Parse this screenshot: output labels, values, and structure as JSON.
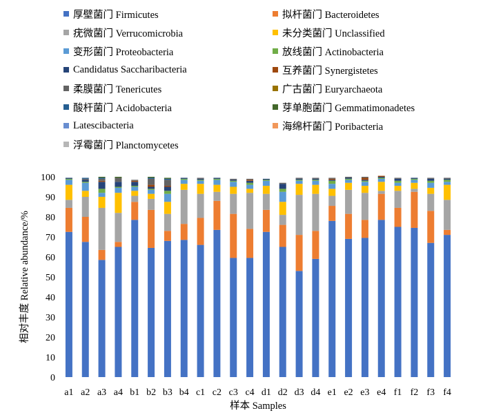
{
  "chart_data": {
    "type": "bar",
    "stacked": true,
    "xlabel": "样本 Samples",
    "ylabel": "相对丰度 Relative abundance/%",
    "ylim": [
      0,
      100
    ],
    "yticks": [
      0,
      10,
      20,
      30,
      40,
      50,
      60,
      70,
      80,
      90,
      100
    ],
    "categories": [
      "a1",
      "a2",
      "a3",
      "a4",
      "b1",
      "b2",
      "b3",
      "b4",
      "c1",
      "c2",
      "c3",
      "c4",
      "d1",
      "d2",
      "d3",
      "d4",
      "e1",
      "e2",
      "e3",
      "e4",
      "f1",
      "f2",
      "f3",
      "f4"
    ],
    "legend_position": "top",
    "series": [
      {
        "name": "厚壁菌门 Firmicutes",
        "color": "#4472c4",
        "values": [
          72.5,
          67.5,
          58.5,
          65,
          78.5,
          64.5,
          68,
          68.5,
          66,
          73.5,
          59.5,
          59.5,
          72.5,
          65,
          53,
          59,
          78,
          69,
          69.5,
          78.5,
          75,
          74.5,
          67,
          71
        ]
      },
      {
        "name": "拟杆菌门 Bacteroidetes",
        "color": "#ed7d31",
        "values": [
          12,
          12.5,
          5,
          2.5,
          9,
          19,
          5,
          8,
          13.5,
          14.5,
          22,
          14.5,
          11,
          11,
          18,
          14,
          7.5,
          12.5,
          9,
          13,
          9.5,
          18,
          16,
          2.5
        ]
      },
      {
        "name": "疣微菌门 Verrucomicrobia",
        "color": "#a5a5a5",
        "values": [
          4,
          10,
          21,
          14.5,
          3,
          5.5,
          8.5,
          17,
          12,
          4.5,
          10,
          18,
          8,
          5,
          20,
          18.5,
          5,
          12,
          13.5,
          1.5,
          8.5,
          1.5,
          8.5,
          15
        ]
      },
      {
        "name": "未分类菌门 Unclassified",
        "color": "#ffc000",
        "values": [
          7.5,
          3,
          5.5,
          10,
          2.5,
          2.5,
          6,
          3,
          5,
          3.5,
          3.5,
          2,
          4,
          6.5,
          5.5,
          4.5,
          3.5,
          3.5,
          3.5,
          4.5,
          2.5,
          3,
          3,
          7.5
        ]
      },
      {
        "name": "变形菌门 Proteobacteria",
        "color": "#5b9bd5",
        "values": [
          2.5,
          4,
          2,
          2.5,
          2,
          2,
          4,
          2,
          1.5,
          2.5,
          2.5,
          2,
          2.5,
          5,
          1.5,
          2,
          2.5,
          1.5,
          2,
          1.5,
          1.5,
          1.5,
          2.5,
          1.5
        ]
      },
      {
        "name": "放线菌门 Actinobacteria",
        "color": "#70ad47",
        "values": [
          0.5,
          0.5,
          2,
          0.5,
          0.5,
          0.5,
          1.5,
          0.5,
          0.5,
          0.5,
          0.5,
          1,
          0.5,
          1.5,
          0.5,
          0.5,
          1.5,
          0.5,
          0.5,
          0.5,
          1,
          0.5,
          1,
          1
        ]
      },
      {
        "name": "Candidatus Saccharibacteria",
        "color": "#264478",
        "values": [
          0.5,
          1,
          3.5,
          2.5,
          2,
          1,
          2,
          0.5,
          0.5,
          0.5,
          0.5,
          1,
          0.5,
          2.5,
          0.5,
          0.5,
          0.5,
          0.5,
          0.5,
          0.5,
          1,
          0.5,
          1,
          0.5
        ]
      },
      {
        "name": "互养菌门 Synergistetes",
        "color": "#9e480e",
        "values": [
          0,
          0,
          0.5,
          0,
          0.5,
          1,
          0.5,
          0,
          0,
          0,
          0,
          0.5,
          0,
          0,
          0,
          0,
          0.5,
          0,
          1,
          0.5,
          0,
          0,
          0,
          0
        ]
      },
      {
        "name": "柔膜菌门 Tenericutes",
        "color": "#636363",
        "values": [
          0,
          0.5,
          1,
          2,
          0.5,
          3,
          3,
          0,
          0.5,
          0,
          0.5,
          0.5,
          0,
          0.5,
          0.5,
          0.5,
          0.5,
          0.5,
          0.5,
          0,
          0.5,
          0,
          0.5,
          0.5
        ]
      },
      {
        "name": "广古菌门 Euryarchaeota",
        "color": "#997300",
        "values": [
          0,
          0,
          0,
          0,
          0,
          0,
          0,
          0,
          0,
          0,
          0,
          0,
          0,
          0,
          0,
          0,
          0,
          0,
          0,
          0,
          0,
          0,
          0,
          0
        ]
      },
      {
        "name": "酸杆菌门 Acidobacteria",
        "color": "#255e91",
        "values": [
          0,
          0.5,
          0.5,
          0,
          0,
          0.5,
          0.5,
          0,
          0,
          0,
          0,
          0,
          0,
          0,
          0,
          0,
          0,
          0,
          0,
          0,
          0,
          0,
          0,
          0
        ]
      },
      {
        "name": "芽单胞菌门 Gemmatimonadetes",
        "color": "#43682b",
        "values": [
          0,
          0,
          0.5,
          0.5,
          0,
          0.5,
          0.5,
          0,
          0,
          0,
          0,
          0,
          0,
          0,
          0,
          0,
          0,
          0,
          0,
          0,
          0,
          0,
          0,
          0
        ]
      },
      {
        "name": "Latescibacteria",
        "color": "#698ed0",
        "values": [
          0,
          0,
          0,
          0,
          0,
          0,
          0,
          0,
          0,
          0,
          0,
          0,
          0,
          0,
          0,
          0,
          0,
          0,
          0,
          0,
          0,
          0,
          0,
          0
        ]
      },
      {
        "name": "海绵杆菌门 Poribacteria",
        "color": "#f1975a",
        "values": [
          0,
          0,
          0,
          0,
          0,
          0,
          0,
          0,
          0,
          0,
          0,
          0,
          0,
          0,
          0,
          0,
          0,
          0,
          0,
          0,
          0,
          0,
          0,
          0
        ]
      },
      {
        "name": "浮霉菌门 Planctomycetes",
        "color": "#b7b7b7",
        "values": [
          0,
          0,
          0,
          0,
          0,
          0,
          0,
          0,
          0,
          0,
          0,
          0,
          0,
          0,
          0,
          0,
          0,
          0,
          0,
          0,
          0,
          0,
          0,
          0
        ]
      }
    ]
  }
}
